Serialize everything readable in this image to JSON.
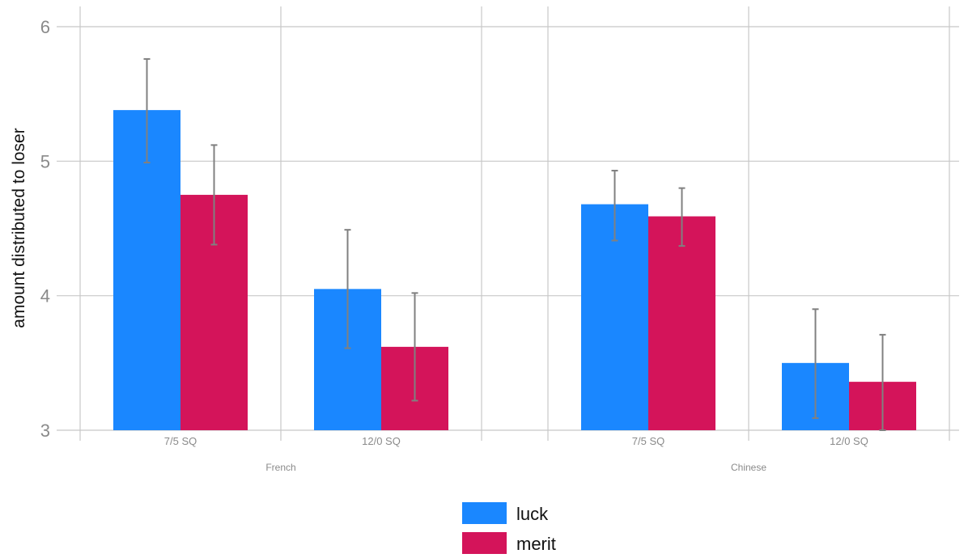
{
  "chart_data": {
    "type": "bar",
    "ylabel": "amount distributed to loser",
    "ylim": [
      3,
      6.1
    ],
    "yticks": [
      3,
      4,
      5,
      6
    ],
    "grid": true,
    "legend_position": "bottom",
    "groups": [
      {
        "label": "French",
        "categories": [
          {
            "label": "7/5 SQ",
            "bars": [
              {
                "series": "luck",
                "value": 5.38,
                "lo": 4.99,
                "hi": 5.76
              },
              {
                "series": "merit",
                "value": 4.75,
                "lo": 4.38,
                "hi": 5.12
              }
            ]
          },
          {
            "label": "12/0 SQ",
            "bars": [
              {
                "series": "luck",
                "value": 4.05,
                "lo": 3.61,
                "hi": 4.49
              },
              {
                "series": "merit",
                "value": 3.62,
                "lo": 3.22,
                "hi": 4.02
              }
            ]
          }
        ]
      },
      {
        "label": "Chinese",
        "categories": [
          {
            "label": "7/5 SQ",
            "bars": [
              {
                "series": "luck",
                "value": 4.68,
                "lo": 4.41,
                "hi": 4.93
              },
              {
                "series": "merit",
                "value": 4.59,
                "lo": 4.37,
                "hi": 4.8
              }
            ]
          },
          {
            "label": "12/0 SQ",
            "bars": [
              {
                "series": "luck",
                "value": 3.5,
                "lo": 3.09,
                "hi": 3.9
              },
              {
                "series": "merit",
                "value": 3.36,
                "lo": 3.0,
                "hi": 3.71
              }
            ]
          }
        ]
      }
    ],
    "series": [
      {
        "name": "luck",
        "color": "#1a87ff"
      },
      {
        "name": "merit",
        "color": "#d4145a"
      }
    ]
  }
}
